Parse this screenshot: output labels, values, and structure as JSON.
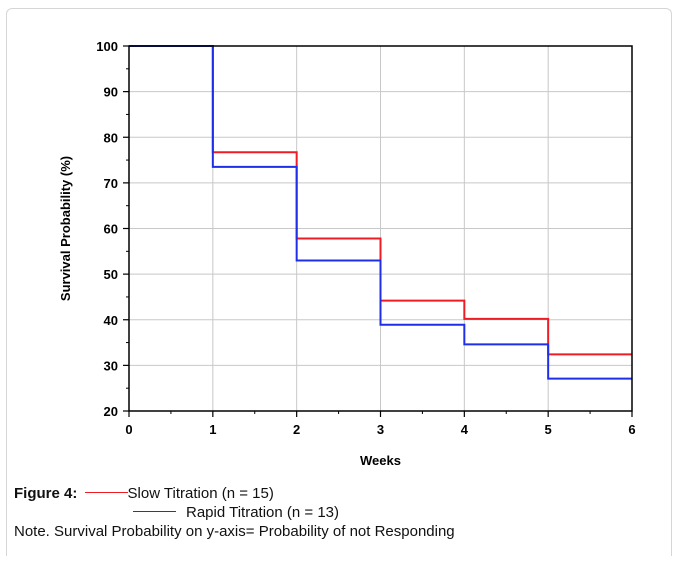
{
  "chart_data": {
    "type": "line",
    "step": true,
    "xlabel": "Weeks",
    "ylabel": "Survival Probability (%)",
    "xlim": [
      0,
      6
    ],
    "ylim": [
      20,
      100
    ],
    "x_ticks": [
      "0",
      "1",
      "2",
      "3",
      "4",
      "5",
      "6"
    ],
    "y_ticks": [
      "20",
      "30",
      "40",
      "50",
      "60",
      "70",
      "80",
      "90",
      "100"
    ],
    "grid": true,
    "series": [
      {
        "name": "Slow Titration (n = 15)",
        "color": "#ee1c24",
        "x": [
          0,
          1,
          2,
          3,
          4,
          5,
          6
        ],
        "y": [
          100,
          76.7,
          57.8,
          44.2,
          40.2,
          32.4,
          32.4
        ]
      },
      {
        "name": "Rapid Titration (n = 13)",
        "color": "#1f2fe8",
        "x": [
          0,
          1,
          2,
          3,
          4,
          5,
          6
        ],
        "y": [
          100,
          73.5,
          53.0,
          38.9,
          34.6,
          27.1,
          27.1
        ]
      }
    ]
  },
  "caption": {
    "figure_label": "Figure 4:",
    "legend": [
      {
        "label": "Slow Titration (n = 15)",
        "color": "#ee1c24"
      },
      {
        "label": "Rapid Titration (n = 13)",
        "color": "#1f2fe8"
      }
    ],
    "note": "Note.  Survival Probability on y-axis= Probability of not Responding"
  }
}
